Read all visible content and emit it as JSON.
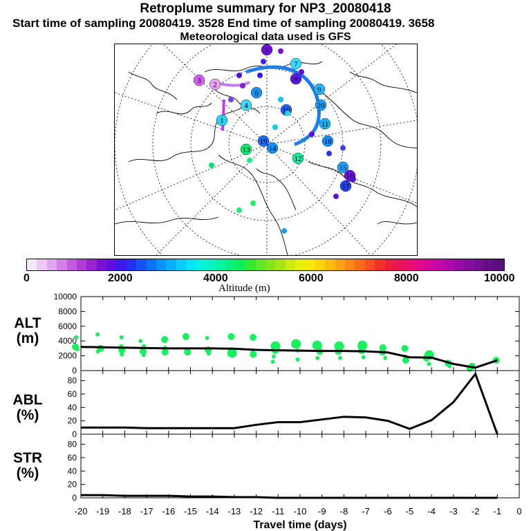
{
  "header": {
    "title": "Retroplume summary for NP3_20080418",
    "subtitle_start": "Start time of sampling 20080419.  3528     End time of sampling 20080419.  3658",
    "subtitle_met": "Meteorological data used is GFS"
  },
  "colorbar": {
    "label": "Altitude (m)",
    "ticks": [
      "0",
      "2000",
      "4000",
      "6000",
      "8000",
      "10000"
    ],
    "colors": [
      "#f5e6fa",
      "#ecc8f5",
      "#e0a6f0",
      "#d27fe8",
      "#c45ae0",
      "#b23ad6",
      "#9a22d0",
      "#7e10d6",
      "#5f0ee0",
      "#3d18ea",
      "#2230f2",
      "#1452f6",
      "#0c72fa",
      "#0a92fc",
      "#08b0fc",
      "#06ccfa",
      "#04e4f6",
      "#04f2e0",
      "#04f4c4",
      "#04f4a2",
      "#06f27c",
      "#10ee56",
      "#34ea30",
      "#5ce822",
      "#84e61a",
      "#a8e414",
      "#ccea10",
      "#eaf00c",
      "#fae80a",
      "#fcd40a",
      "#fcbc0c",
      "#fca210",
      "#fc8614",
      "#fc6a1a",
      "#f84e22",
      "#f03228",
      "#ec1c40",
      "#ea1458",
      "#e80e72",
      "#e20a88",
      "#d6089c",
      "#c408a8",
      "#ae08ac",
      "#980aa8",
      "#840c9e",
      "#720e92",
      "#640f86",
      "#5a0f7a"
    ]
  },
  "map": {
    "trajectory_labels": [
      "1",
      "2",
      "3",
      "4",
      "5",
      "6",
      "7",
      "8",
      "9",
      "10",
      "11",
      "12",
      "13",
      "14",
      "15",
      "16",
      "17",
      "18",
      "19",
      "20"
    ]
  },
  "panels": [
    {
      "label_line1": "ALT",
      "label_line2": "(m)"
    },
    {
      "label_line1": "ABL",
      "label_line2": "(%)"
    },
    {
      "label_line1": "STR",
      "label_line2": "(%)"
    }
  ],
  "xaxis": {
    "label": "Travel time (days)"
  },
  "chart_data": [
    {
      "type": "line",
      "name": "ALT",
      "x": [
        -20,
        -19,
        -18,
        -17,
        -16,
        -15,
        -14,
        -13,
        -12,
        -11,
        -10,
        -9,
        -8,
        -7,
        -6,
        -5,
        -4,
        -3,
        -2,
        -1
      ],
      "values": [
        3200,
        3150,
        3100,
        3050,
        3000,
        3000,
        3000,
        2950,
        2800,
        2750,
        2700,
        2650,
        2650,
        2600,
        2450,
        1800,
        1750,
        900,
        400,
        1400
      ],
      "scatter": [
        [
          -20.0,
          4500,
          1
        ],
        [
          -20.0,
          3200,
          2
        ],
        [
          -20.0,
          2900,
          1
        ],
        [
          -19.0,
          4900,
          1
        ],
        [
          -19.0,
          3000,
          2
        ],
        [
          -19.0,
          2600,
          1
        ],
        [
          -18.0,
          4500,
          1
        ],
        [
          -18.0,
          3300,
          1
        ],
        [
          -18.0,
          2800,
          2
        ],
        [
          -18.0,
          2200,
          1
        ],
        [
          -17.0,
          4000,
          1
        ],
        [
          -17.0,
          3300,
          1
        ],
        [
          -17.0,
          2600,
          2
        ],
        [
          -17.0,
          2100,
          1
        ],
        [
          -16.0,
          4200,
          2
        ],
        [
          -16.0,
          3100,
          1
        ],
        [
          -16.0,
          2500,
          2
        ],
        [
          -15.0,
          4600,
          2
        ],
        [
          -15.0,
          2900,
          1
        ],
        [
          -15.0,
          2500,
          2
        ],
        [
          -14.0,
          4400,
          1
        ],
        [
          -14.0,
          2800,
          2
        ],
        [
          -14.0,
          2300,
          1
        ],
        [
          -13.0,
          4600,
          2
        ],
        [
          -13.0,
          2900,
          1
        ],
        [
          -13.0,
          2400,
          3
        ],
        [
          -12.0,
          4500,
          2
        ],
        [
          -12.0,
          2700,
          1
        ],
        [
          -12.0,
          2200,
          2
        ],
        [
          -11.0,
          3300,
          3
        ],
        [
          -11.0,
          2700,
          2
        ],
        [
          -11.0,
          1900,
          1
        ],
        [
          -11.0,
          1200,
          1
        ],
        [
          -10.0,
          3600,
          3
        ],
        [
          -10.0,
          2700,
          1
        ],
        [
          -10.0,
          1500,
          1
        ],
        [
          -9.0,
          3400,
          3
        ],
        [
          -9.0,
          2600,
          2
        ],
        [
          -9.0,
          1700,
          1
        ],
        [
          -8.0,
          3300,
          3
        ],
        [
          -8.0,
          2600,
          2
        ],
        [
          -8.0,
          1700,
          1
        ],
        [
          -7.0,
          3400,
          3
        ],
        [
          -7.0,
          2700,
          2
        ],
        [
          -7.0,
          1800,
          1
        ],
        [
          -6.0,
          3100,
          2
        ],
        [
          -6.0,
          2500,
          2
        ],
        [
          -6.0,
          1700,
          1
        ],
        [
          -5.0,
          3000,
          2
        ],
        [
          -5.0,
          1900,
          1
        ],
        [
          -5.0,
          1400,
          2
        ],
        [
          -4.0,
          2100,
          3
        ],
        [
          -4.0,
          1700,
          2
        ],
        [
          -4.0,
          900,
          1
        ],
        [
          -3.0,
          1000,
          2
        ],
        [
          -3.0,
          600,
          1
        ],
        [
          -2.0,
          600,
          2
        ],
        [
          -2.0,
          300,
          2
        ],
        [
          -1.0,
          1400,
          2
        ]
      ],
      "xlim": [
        -20,
        0
      ],
      "ylim": [
        0,
        10000
      ],
      "yticks": [
        0,
        2000,
        4000,
        6000,
        8000,
        10000
      ]
    },
    {
      "type": "line",
      "name": "ABL",
      "x": [
        -20,
        -19,
        -18,
        -17,
        -16,
        -15,
        -14,
        -13,
        -12,
        -11,
        -10,
        -9,
        -8,
        -7,
        -6,
        -5,
        -4,
        -3,
        -2,
        -1
      ],
      "values": [
        10,
        10,
        10,
        9,
        9,
        9,
        9,
        9,
        14,
        18,
        18,
        22,
        26,
        25,
        20,
        8,
        21,
        48,
        90,
        0
      ],
      "xlim": [
        -20,
        0
      ],
      "ylim": [
        0,
        95
      ],
      "yticks": [
        0,
        20,
        40,
        60,
        80
      ]
    },
    {
      "type": "line",
      "name": "STR",
      "x": [
        -20,
        -19,
        -18,
        -17,
        -16,
        -15,
        -14,
        -13,
        -12,
        -11,
        -10,
        -9,
        -8,
        -7,
        -6,
        -5,
        -4,
        -3,
        -2,
        -1
      ],
      "values": [
        4,
        4,
        3,
        3,
        3,
        2,
        2,
        1,
        1,
        0,
        0,
        0,
        0,
        0,
        0,
        0,
        0,
        0,
        0,
        0
      ],
      "xlim": [
        -20,
        0
      ],
      "ylim": [
        0,
        95
      ],
      "yticks": [
        0,
        20,
        40,
        60,
        80
      ]
    }
  ],
  "xticks": [
    "-20",
    "-19",
    "-18",
    "-17",
    "-16",
    "-15",
    "-14",
    "-13",
    "-12",
    "-11",
    "-10",
    "-9",
    "-8",
    "-7",
    "-6",
    "-5",
    "-4",
    "-3",
    "-2",
    "-1",
    "0"
  ]
}
